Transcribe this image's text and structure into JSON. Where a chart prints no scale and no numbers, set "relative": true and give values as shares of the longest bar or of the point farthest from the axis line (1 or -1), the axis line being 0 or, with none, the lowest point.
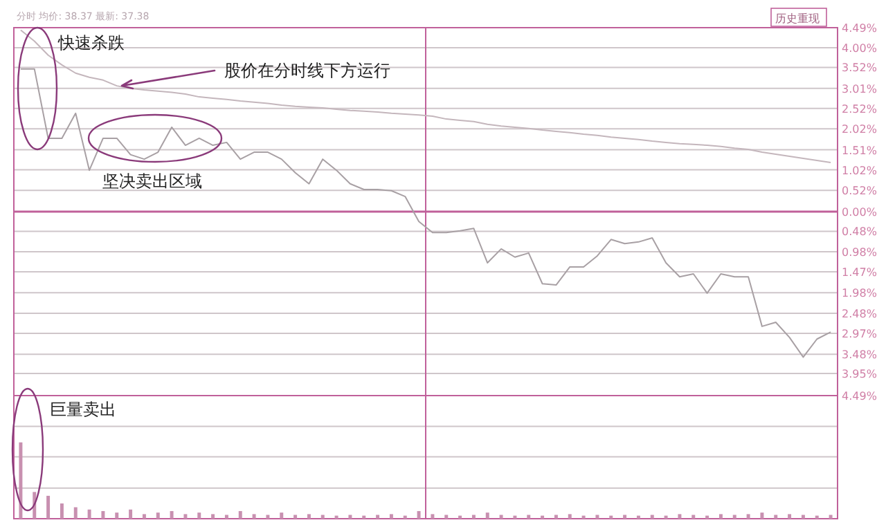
{
  "chart_data": [
    {
      "type": "line",
      "categories": [
        null,
        null,
        null,
        null,
        null,
        null,
        null,
        null,
        null,
        null,
        null,
        null,
        null,
        null,
        null,
        null,
        null,
        null,
        null,
        null,
        null,
        null,
        null,
        null,
        null,
        null,
        null,
        null,
        null,
        null,
        null,
        null,
        null,
        null,
        null,
        null,
        null,
        null,
        null,
        null,
        null,
        null,
        null,
        null,
        null,
        null,
        null,
        null,
        null,
        null,
        null,
        null,
        null,
        null,
        null,
        null,
        null,
        null,
        null,
        null
      ],
      "series": [
        {
          "color": "#a8a0a4",
          "values": [
            3.48,
            3.48,
            1.79,
            1.79,
            2.4,
            1.01,
            1.79,
            1.79,
            1.39,
            1.28,
            1.45,
            2.06,
            1.62,
            1.79,
            1.62,
            1.69,
            1.28,
            1.45,
            1.45,
            1.28,
            0.95,
            0.68,
            1.28,
            1.01,
            0.68,
            0.54,
            0.54,
            0.51,
            0.37,
            -0.24,
            -0.51,
            -0.51,
            -0.47,
            -0.41,
            -1.25,
            -0.91,
            -1.11,
            -1.01,
            -1.76,
            -1.79,
            -1.35,
            -1.35,
            -1.08,
            -0.68,
            -0.78,
            -0.74,
            -0.64,
            -1.25,
            -1.59,
            -1.52,
            -1.99,
            -1.52,
            -1.59,
            -1.59,
            -2.8,
            -2.7,
            -3.07,
            -3.55,
            -3.11,
            -2.94
          ]
        },
        {
          "color": "#c4b6bc",
          "values": [
            4.43,
            4.16,
            3.82,
            3.58,
            3.38,
            3.28,
            3.21,
            3.07,
            3.01,
            2.97,
            2.94,
            2.91,
            2.87,
            2.8,
            2.77,
            2.74,
            2.7,
            2.67,
            2.64,
            2.6,
            2.57,
            2.55,
            2.53,
            2.5,
            2.47,
            2.45,
            2.43,
            2.4,
            2.38,
            2.36,
            2.33,
            2.26,
            2.23,
            2.2,
            2.13,
            2.09,
            2.06,
            2.03,
            1.99,
            1.96,
            1.93,
            1.89,
            1.86,
            1.82,
            1.79,
            1.76,
            1.72,
            1.69,
            1.66,
            1.64,
            1.62,
            1.59,
            1.55,
            1.52,
            1.45,
            1.4,
            1.35,
            1.3,
            1.25,
            1.2
          ]
        }
      ],
      "ylim": [
        -4.49,
        4.49
      ],
      "yticks": [
        {
          "value": 4.49,
          "label": "4.49%"
        },
        {
          "value": 4.0,
          "label": "4.00%"
        },
        {
          "value": 3.52,
          "label": "3.52%"
        },
        {
          "value": 3.01,
          "label": "3.01%"
        },
        {
          "value": 2.52,
          "label": "2.52%"
        },
        {
          "value": 2.02,
          "label": "2.02%"
        },
        {
          "value": 1.51,
          "label": "1.51%"
        },
        {
          "value": 1.02,
          "label": "1.02%"
        },
        {
          "value": 0.52,
          "label": "0.52%"
        },
        {
          "value": 0,
          "label": "0.00%"
        },
        {
          "value": -0.48,
          "label": "0.48%"
        },
        {
          "value": -0.98,
          "label": "0.98%"
        },
        {
          "value": -1.47,
          "label": "1.47%"
        },
        {
          "value": -1.98,
          "label": "1.98%"
        },
        {
          "value": -2.48,
          "label": "2.48%"
        },
        {
          "value": -2.97,
          "label": "2.97%"
        },
        {
          "value": -3.48,
          "label": "3.48%"
        },
        {
          "value": -3.95,
          "label": "3.95%"
        },
        {
          "value": -4.49,
          "label": "4.49%"
        }
      ],
      "grid": "y",
      "ref_lines": [
        {
          "axis": "y",
          "value": 0,
          "color": "#c0609a"
        }
      ],
      "annotations": [
        "分时 均价: 38.37 最新: 37.38",
        "历史重现",
        "快速杀跌",
        "股价在分时线下方运行",
        "坚决卖出区域"
      ]
    },
    {
      "type": "bar",
      "categories": [
        null,
        null,
        null,
        null,
        null,
        null,
        null,
        null,
        null,
        null,
        null,
        null,
        null,
        null,
        null,
        null,
        null,
        null,
        null,
        null,
        null,
        null,
        null,
        null,
        null,
        null,
        null,
        null,
        null,
        null,
        null,
        null,
        null,
        null,
        null,
        null,
        null,
        null,
        null,
        null,
        null,
        null,
        null,
        null,
        null,
        null,
        null,
        null,
        null,
        null,
        null,
        null,
        null,
        null,
        null,
        null,
        null,
        null,
        null,
        null
      ],
      "values": [
        1.0,
        0.35,
        0.3,
        0.2,
        0.15,
        0.12,
        0.1,
        0.08,
        0.12,
        0.06,
        0.08,
        0.1,
        0.06,
        0.08,
        0.06,
        0.05,
        0.1,
        0.06,
        0.05,
        0.08,
        0.05,
        0.06,
        0.05,
        0.04,
        0.05,
        0.04,
        0.05,
        0.06,
        0.04,
        0.1,
        0.06,
        0.05,
        0.04,
        0.05,
        0.08,
        0.05,
        0.04,
        0.05,
        0.04,
        0.05,
        0.06,
        0.04,
        0.05,
        0.04,
        0.05,
        0.04,
        0.05,
        0.04,
        0.06,
        0.05,
        0.04,
        0.06,
        0.05,
        0.06,
        0.08,
        0.05,
        0.06,
        0.05,
        0.04,
        0.05
      ],
      "color": "#c890b0",
      "relative": true,
      "ref_lines": [
        {
          "axis": "y",
          "value": 0.4,
          "color": "#cfc6ca"
        },
        {
          "axis": "y",
          "value": 0.81,
          "color": "#cfc6ca"
        },
        {
          "axis": "y",
          "value": 1.21,
          "color": "#cfc6ca"
        }
      ],
      "annotations": [
        "巨量卖出"
      ]
    }
  ]
}
